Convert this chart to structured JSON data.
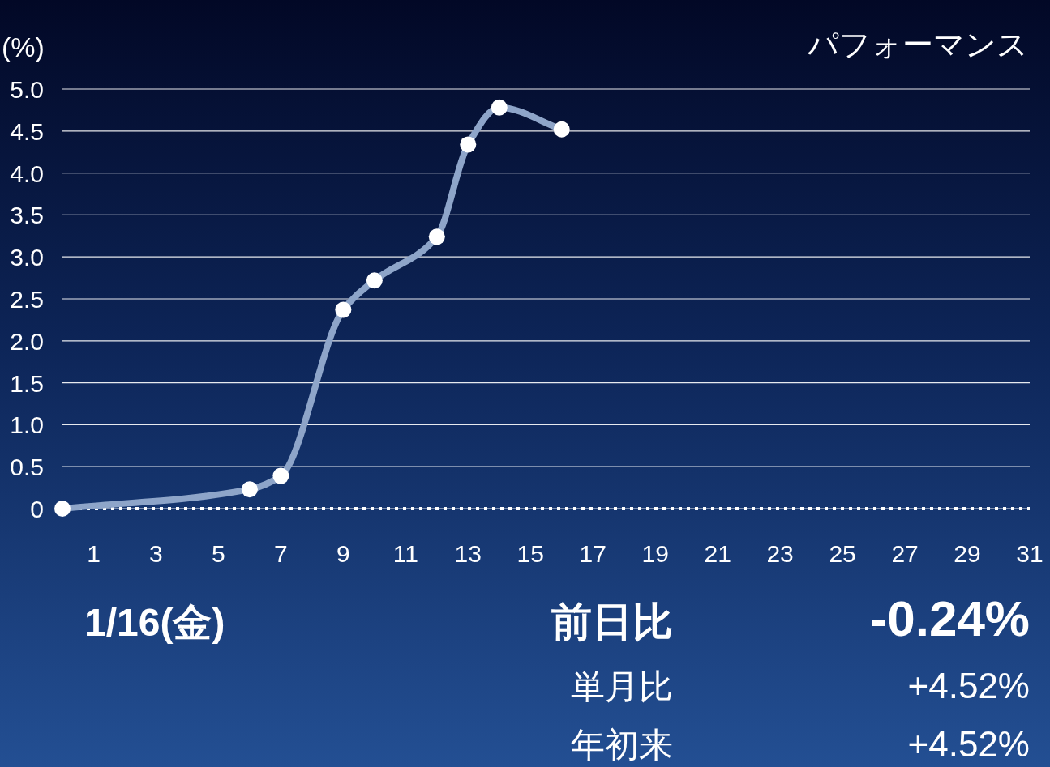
{
  "chart_data": {
    "type": "line",
    "title": "パフォーマンス",
    "ylabel": "(%)",
    "x": [
      0,
      6,
      7,
      9,
      10,
      12,
      13,
      14,
      16
    ],
    "series": [
      {
        "color": "#8ea5c9",
        "values": [
          0,
          0.23,
          0.39,
          2.37,
          2.72,
          3.24,
          4.34,
          4.78,
          4.52
        ]
      }
    ],
    "xlim": [
      0,
      31
    ],
    "xticks": [
      1,
      3,
      5,
      7,
      9,
      11,
      13,
      15,
      17,
      19,
      21,
      23,
      25,
      27,
      29,
      31
    ],
    "ylim": [
      0,
      5
    ],
    "yticks": [
      0,
      {
        "value": 0.5,
        "label": "0.5"
      },
      {
        "value": 1,
        "label": "1.0"
      },
      {
        "value": 1.5,
        "label": "1.5"
      },
      {
        "value": 2,
        "label": "2.0"
      },
      {
        "value": 2.5,
        "label": "2.5"
      },
      {
        "value": 3,
        "label": "3.0"
      },
      {
        "value": 3.5,
        "label": "3.5"
      },
      {
        "value": 4,
        "label": "4.0"
      },
      {
        "value": 4.5,
        "label": "4.5"
      },
      {
        "value": 5,
        "label": "5.0"
      }
    ],
    "grid": "y",
    "marker": "circle",
    "line_style": "solid",
    "ref_lines": [
      {
        "axis": "y",
        "value": 0,
        "line_style": "dotted",
        "color": "#ffffff"
      }
    ],
    "annotations": [
      "1/16(金)",
      "前日比",
      "-0.24%",
      "単月比",
      "+4.52%",
      "年初来",
      "+4.52%"
    ]
  }
}
